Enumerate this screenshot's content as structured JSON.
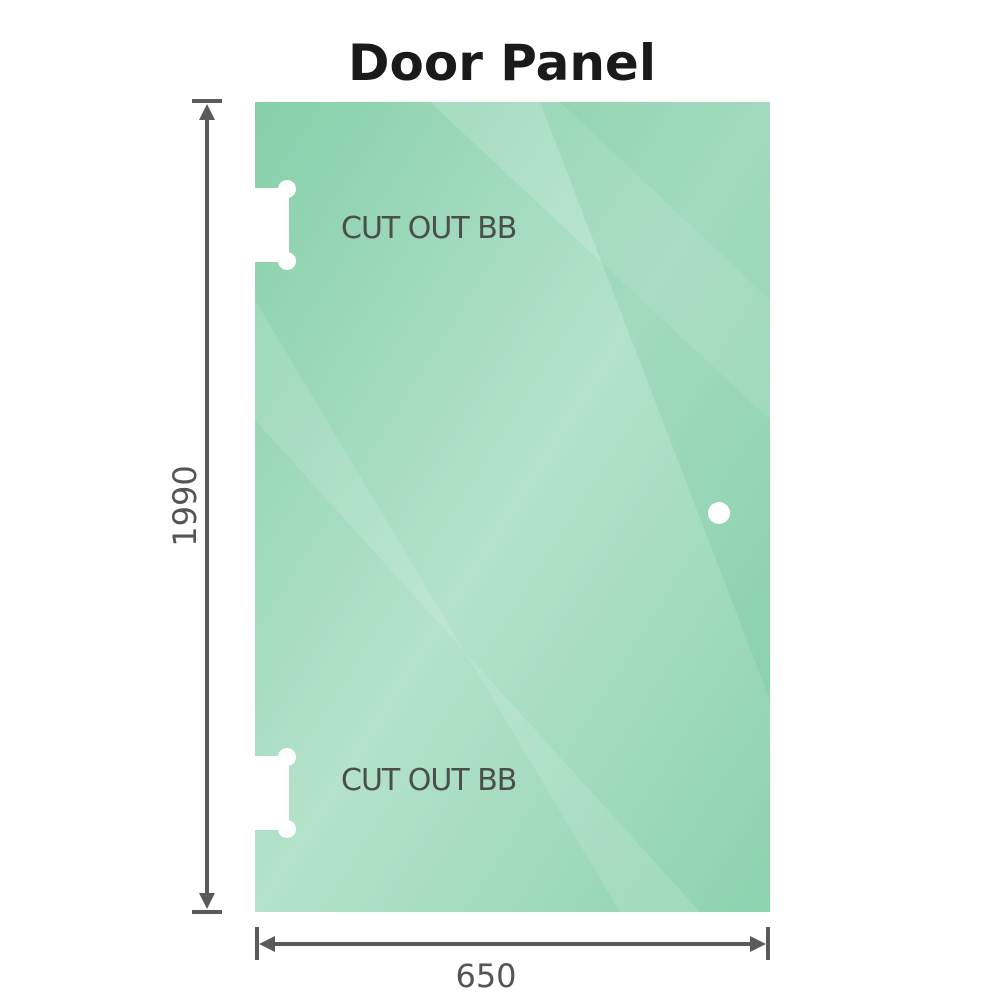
{
  "title": "Door Panel",
  "cutout_top_label": "CUT OUT BB",
  "cutout_bottom_label": "CUT OUT BB",
  "height_dimension": "1990",
  "width_dimension": "650",
  "colors": {
    "glass": "#8fd3b0",
    "glass_dark": "#7ec9a4",
    "glass_light": "#b6e4cc",
    "dimension_line": "#5a5a5a"
  }
}
